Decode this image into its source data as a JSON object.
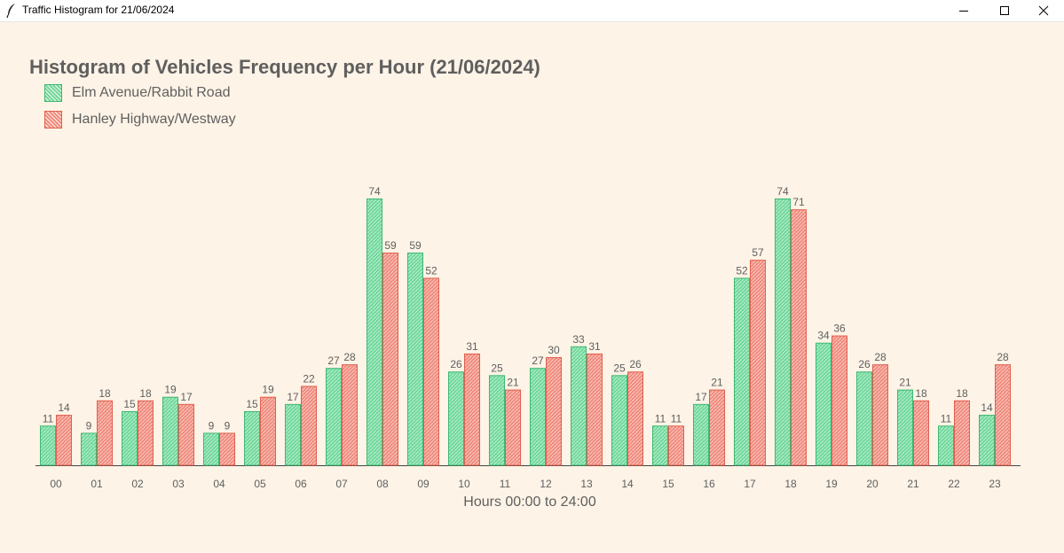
{
  "window": {
    "title": "Traffic Histogram for 21/06/2024",
    "icon": "feather-icon",
    "controls": [
      "minimize-icon",
      "maximize-icon",
      "close-icon"
    ]
  },
  "colors": {
    "background": "#fdf3e6",
    "series0_fill": "#6fd89a",
    "series0_edge": "#3fb874",
    "series1_fill": "#f08a7c",
    "series1_edge": "#e0604f",
    "text": "#5f5f5f"
  },
  "chart_data": {
    "type": "bar",
    "title": "Histogram of Vehicles Frequency per Hour (21/06/2024)",
    "xlabel": "Hours 00:00 to 24:00",
    "ylabel": "",
    "categories": [
      "00",
      "01",
      "02",
      "03",
      "04",
      "05",
      "06",
      "07",
      "08",
      "09",
      "10",
      "11",
      "12",
      "13",
      "14",
      "15",
      "16",
      "17",
      "18",
      "19",
      "20",
      "21",
      "22",
      "23"
    ],
    "series": [
      {
        "name": "Elm Avenue/Rabbit Road",
        "values": [
          11,
          9,
          15,
          19,
          9,
          15,
          17,
          27,
          74,
          59,
          26,
          25,
          27,
          33,
          25,
          11,
          17,
          52,
          74,
          34,
          26,
          21,
          11,
          14
        ]
      },
      {
        "name": "Hanley Highway/Westway",
        "values": [
          14,
          18,
          18,
          17,
          9,
          19,
          22,
          28,
          59,
          52,
          31,
          21,
          30,
          31,
          26,
          11,
          21,
          57,
          71,
          36,
          28,
          18,
          18,
          28
        ]
      }
    ],
    "ylim": [
      0,
      74
    ],
    "grid": false,
    "legend": "top-left",
    "data_labels": true
  }
}
